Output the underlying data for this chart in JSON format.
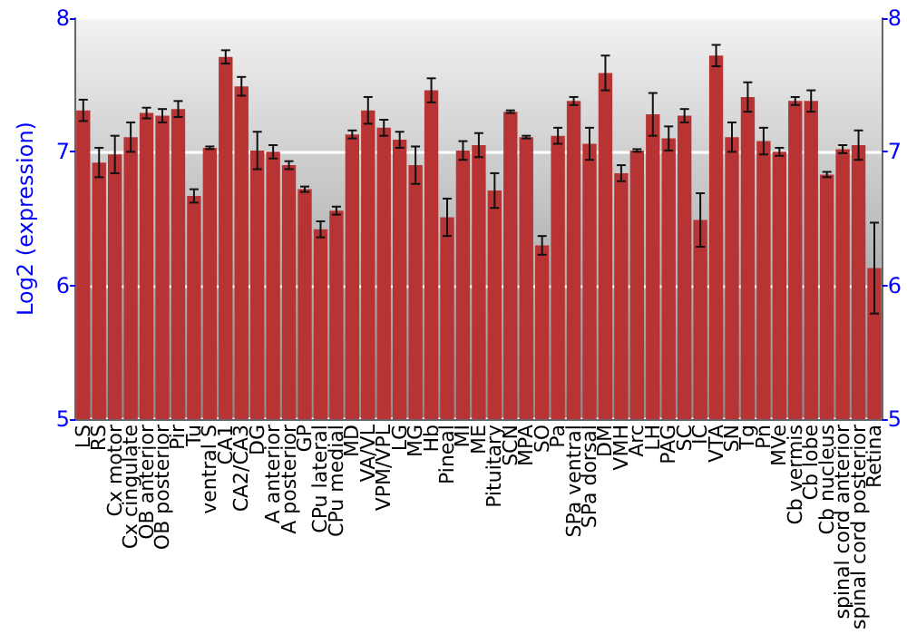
{
  "chart_data": {
    "type": "bar",
    "ylabel": "Log2 (expression)",
    "categories": [
      "LS",
      "RS",
      "Cx motor",
      "Cx cingulate",
      "OB anterior",
      "OB posterior",
      "Pir",
      "Tu",
      "ventral S",
      "CA1",
      "CA2/CA3",
      "DG",
      "A anterior",
      "A posterior",
      "GP",
      "CPu lateral",
      "CPu medial",
      "MD",
      "VA/VL",
      "VPM/VPL",
      "LG",
      "MG",
      "Hb",
      "Pineal",
      "MI",
      "ME",
      "Pituitary",
      "SCN",
      "MPA",
      "SO",
      "Pa",
      "SPa ventral",
      "SPa dorsal",
      "DM",
      "VMH",
      "Arc",
      "LH",
      "PAG",
      "SC",
      "IC",
      "VTA",
      "SN",
      "Tg",
      "Pn",
      "MVe",
      "Cb vermis",
      "Cb lobe",
      "Cb nucleus",
      "spinal cord anterior",
      "spinal cord posterior",
      "Retina"
    ],
    "values": [
      7.31,
      6.92,
      6.98,
      7.11,
      7.29,
      7.27,
      7.32,
      6.67,
      7.03,
      7.71,
      7.49,
      7.01,
      7.0,
      6.9,
      6.72,
      6.42,
      6.56,
      7.13,
      7.31,
      7.18,
      7.09,
      6.9,
      7.46,
      6.51,
      7.01,
      7.05,
      6.71,
      7.3,
      7.11,
      6.3,
      7.12,
      7.38,
      7.06,
      7.59,
      6.84,
      7.01,
      7.28,
      7.1,
      7.27,
      6.49,
      7.72,
      7.11,
      7.41,
      7.08,
      7.0,
      7.38,
      7.38,
      6.83,
      7.02,
      7.05,
      6.13
    ],
    "errors": [
      0.08,
      0.11,
      0.14,
      0.11,
      0.04,
      0.05,
      0.06,
      0.05,
      0.01,
      0.05,
      0.07,
      0.14,
      0.05,
      0.03,
      0.02,
      0.06,
      0.03,
      0.03,
      0.1,
      0.06,
      0.06,
      0.14,
      0.09,
      0.14,
      0.07,
      0.09,
      0.13,
      0.01,
      0.01,
      0.07,
      0.06,
      0.03,
      0.12,
      0.13,
      0.06,
      0.01,
      0.16,
      0.09,
      0.05,
      0.2,
      0.08,
      0.11,
      0.11,
      0.1,
      0.03,
      0.03,
      0.08,
      0.02,
      0.03,
      0.11,
      0.34
    ],
    "color": "#b83333",
    "ylim": [
      5,
      8
    ],
    "yticks": [
      5,
      6,
      7,
      8
    ],
    "y2lim": [
      5,
      8
    ],
    "y2ticks": [
      5,
      6,
      7,
      8
    ],
    "grid": "y"
  }
}
